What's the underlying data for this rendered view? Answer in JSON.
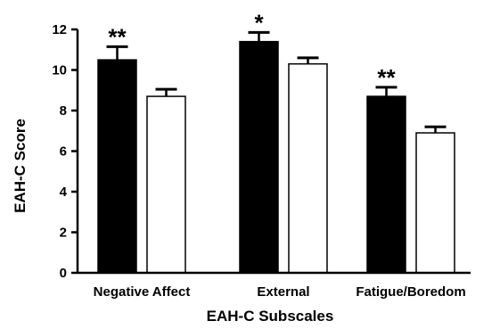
{
  "chart_data": {
    "type": "bar",
    "title": "",
    "xlabel": "EAH-C Subscales",
    "ylabel": "EAH-C Score",
    "ylim": [
      0,
      12
    ],
    "yticks": [
      0,
      2,
      4,
      6,
      8,
      10,
      12
    ],
    "grid": false,
    "legend": "none",
    "categories": [
      "Negative Affect",
      "External",
      "Fatigue/Boredom"
    ],
    "series": [
      {
        "color": "#000000",
        "values": [
          10.5,
          11.4,
          8.7
        ],
        "errors": [
          0.65,
          0.45,
          0.45
        ],
        "annotations": [
          "**",
          "*",
          "**"
        ]
      },
      {
        "color": "#ffffff",
        "values": [
          8.7,
          10.3,
          6.9
        ],
        "errors": [
          0.35,
          0.3,
          0.3
        ],
        "annotations": [
          "",
          "",
          ""
        ]
      }
    ]
  }
}
